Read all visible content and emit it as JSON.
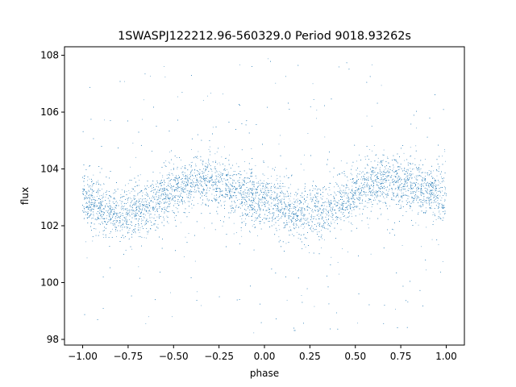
{
  "chart_data": {
    "type": "scatter",
    "title": "1SWASPJ122212.96-560329.0 Period 9018.93262s",
    "xlabel": "phase",
    "ylabel": "flux",
    "xlim": [
      -1.1,
      1.1
    ],
    "ylim": [
      97.8,
      108.3
    ],
    "x_ticks": [
      -1.0,
      -0.75,
      -0.5,
      -0.25,
      0.0,
      0.25,
      0.5,
      0.75,
      1.0
    ],
    "x_tick_labels": [
      "−1.00",
      "−0.75",
      "−0.50",
      "−0.25",
      "0.00",
      "0.25",
      "0.50",
      "0.75",
      "1.00"
    ],
    "y_ticks": [
      98,
      100,
      102,
      104,
      106,
      108
    ],
    "y_tick_labels": [
      "98",
      "100",
      "102",
      "104",
      "106",
      "108"
    ],
    "grid": false,
    "marker_color": "#1f77b4",
    "series": [
      {
        "phase_range": [
          -1.0,
          1.0
        ],
        "trend": {
          "x": [
            -1.0,
            -0.8,
            -0.65,
            -0.5,
            -0.35,
            -0.25,
            -0.1,
            0.0,
            0.2,
            0.35,
            0.5,
            0.65,
            0.75,
            0.9,
            1.0
          ],
          "y": [
            102.9,
            102.4,
            102.6,
            103.2,
            103.6,
            103.4,
            103.1,
            102.9,
            102.4,
            102.6,
            103.1,
            103.6,
            103.5,
            103.2,
            103.0
          ]
        },
        "core_scatter": 0.45,
        "outlier_range": [
          98.2,
          107.9
        ]
      }
    ]
  }
}
